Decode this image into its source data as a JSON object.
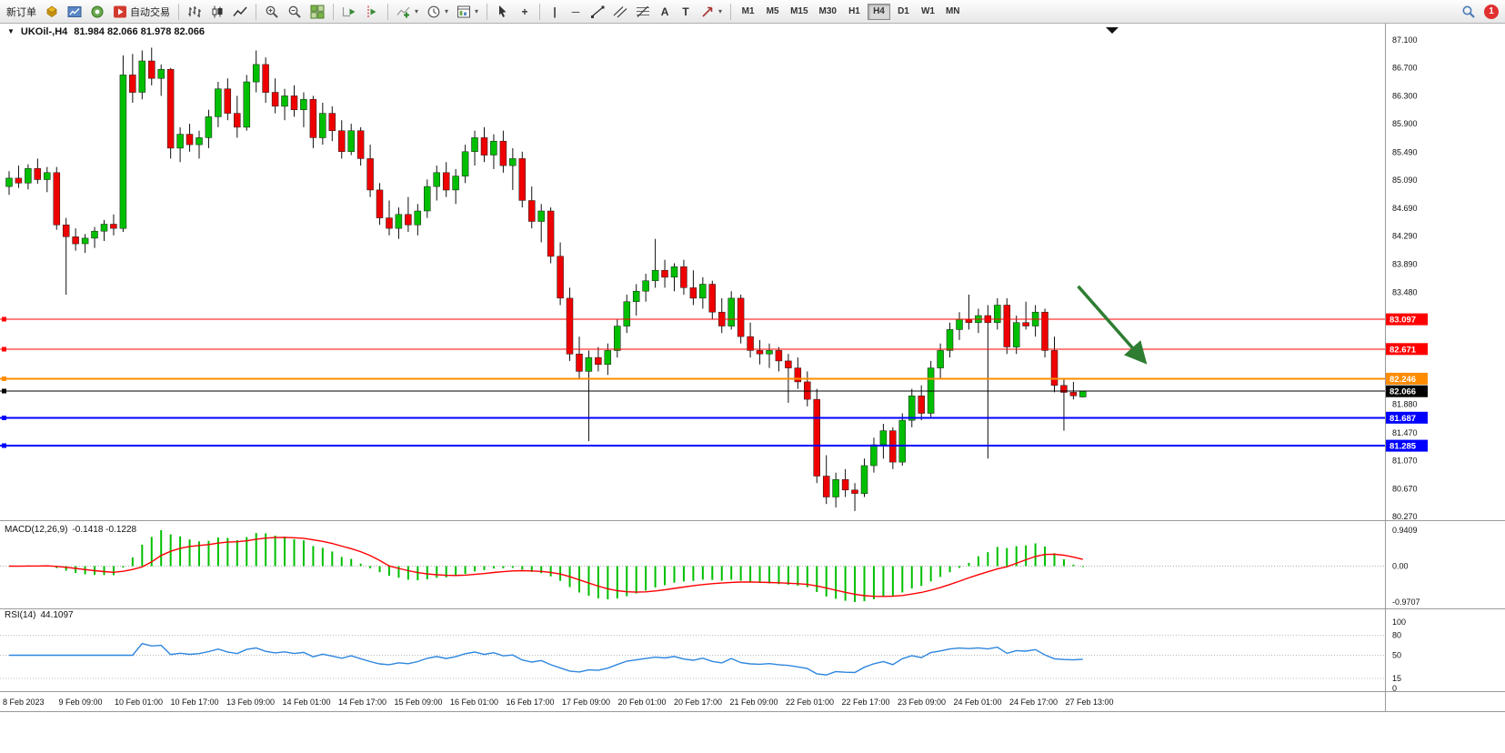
{
  "toolbar": {
    "new_order_label": "新订单",
    "autotrade_label": "自动交易",
    "timeframes": [
      "M1",
      "M5",
      "M15",
      "M30",
      "H1",
      "H4",
      "D1",
      "W1",
      "MN"
    ],
    "active_timeframe": "H4",
    "notification_count": "1"
  },
  "icons": {
    "one_click": "▼",
    "crosshair": "+",
    "vline": "|",
    "hline": "─",
    "text": "A",
    "label": "T",
    "caret": "▾"
  },
  "chart_header": {
    "symbol": "UKOil-,H4",
    "ohlc": "81.984 82.066 81.978 82.066"
  },
  "indicators": {
    "macd": {
      "label": "MACD(12,26,9)",
      "values": "-0.1418 -0.1228",
      "axis": [
        "0.9409",
        "0.00",
        "-0.9707"
      ]
    },
    "rsi": {
      "label": "RSI(14)",
      "value": "44.1097",
      "axis": [
        "100",
        "80",
        "50",
        "15",
        "0"
      ],
      "levels": [
        80,
        50,
        15
      ]
    }
  },
  "chart_data": {
    "type": "candlestick",
    "title": "UKOil-,H4",
    "timeframe": "H4",
    "ohlc_current": [
      81.984,
      82.066,
      81.978,
      82.066
    ],
    "price_range": [
      80.27,
      87.1
    ],
    "price_axis_labels": [
      "87.100",
      "86.700",
      "86.300",
      "85.900",
      "85.490",
      "85.090",
      "84.690",
      "84.290",
      "83.890",
      "83.480",
      "81.880",
      "81.470",
      "81.070",
      "80.670",
      "80.270"
    ],
    "time_axis_labels": [
      "8 Feb 2023",
      "9 Feb 09:00",
      "10 Feb 01:00",
      "10 Feb 17:00",
      "13 Feb 09:00",
      "14 Feb 01:00",
      "14 Feb 17:00",
      "15 Feb 09:00",
      "16 Feb 01:00",
      "16 Feb 17:00",
      "17 Feb 09:00",
      "20 Feb 01:00",
      "20 Feb 17:00",
      "21 Feb 09:00",
      "22 Feb 01:00",
      "22 Feb 17:00",
      "23 Feb 09:00",
      "24 Feb 01:00",
      "24 Feb 17:00",
      "27 Feb 13:00"
    ],
    "hlines": [
      {
        "price": 83.097,
        "label": "83.097",
        "color": "#ff0000",
        "width": 1
      },
      {
        "price": 82.671,
        "label": "82.671",
        "color": "#ff0000",
        "width": 1
      },
      {
        "price": 82.246,
        "label": "82.246",
        "color": "#ff8c00",
        "width": 2
      },
      {
        "price": 82.066,
        "label": "82.066",
        "color": "#000000",
        "width": 1
      },
      {
        "price": 81.687,
        "label": "81.687",
        "color": "#0000ff",
        "width": 2
      },
      {
        "price": 81.285,
        "label": "81.285",
        "color": "#0000ff",
        "width": 2
      }
    ],
    "annotation_arrow": {
      "from_index": 112.5,
      "from_price": 83.57,
      "to_index": 119.3,
      "to_price": 82.52,
      "color": "#2e7d32"
    },
    "colors": {
      "up": "#00bf00",
      "down": "#ef0000",
      "wick": "#101010",
      "macd_hist": "#00bf00",
      "macd_signal": "#ff0000",
      "rsi_line": "#2e86de"
    },
    "candles": [
      [
        85.0,
        85.22,
        84.88,
        85.12
      ],
      [
        85.12,
        85.3,
        84.98,
        85.05
      ],
      [
        85.05,
        85.32,
        84.96,
        85.26
      ],
      [
        85.26,
        85.4,
        85.04,
        85.1
      ],
      [
        85.1,
        85.28,
        84.92,
        85.2
      ],
      [
        85.2,
        85.28,
        84.38,
        84.45
      ],
      [
        84.45,
        84.55,
        83.45,
        84.28
      ],
      [
        84.28,
        84.4,
        84.08,
        84.18
      ],
      [
        84.18,
        84.32,
        84.05,
        84.26
      ],
      [
        84.26,
        84.42,
        84.12,
        84.36
      ],
      [
        84.36,
        84.52,
        84.22,
        84.46
      ],
      [
        84.46,
        84.6,
        84.3,
        84.4
      ],
      [
        84.4,
        86.88,
        84.35,
        86.6
      ],
      [
        86.6,
        86.9,
        86.2,
        86.35
      ],
      [
        86.35,
        86.95,
        86.25,
        86.8
      ],
      [
        86.8,
        86.99,
        86.45,
        86.55
      ],
      [
        86.55,
        86.75,
        86.3,
        86.68
      ],
      [
        86.68,
        86.7,
        85.4,
        85.55
      ],
      [
        85.55,
        85.85,
        85.35,
        85.75
      ],
      [
        85.75,
        85.9,
        85.5,
        85.6
      ],
      [
        85.6,
        85.8,
        85.4,
        85.7
      ],
      [
        85.7,
        86.1,
        85.55,
        86.0
      ],
      [
        86.0,
        86.5,
        85.85,
        86.4
      ],
      [
        86.4,
        86.55,
        85.95,
        86.05
      ],
      [
        86.05,
        86.3,
        85.7,
        85.85
      ],
      [
        85.85,
        86.6,
        85.8,
        86.5
      ],
      [
        86.5,
        86.95,
        86.35,
        86.75
      ],
      [
        86.75,
        86.85,
        86.2,
        86.35
      ],
      [
        86.35,
        86.55,
        86.05,
        86.15
      ],
      [
        86.15,
        86.4,
        85.95,
        86.3
      ],
      [
        86.3,
        86.45,
        86.0,
        86.1
      ],
      [
        86.1,
        86.35,
        85.85,
        86.25
      ],
      [
        86.25,
        86.3,
        85.55,
        85.7
      ],
      [
        85.7,
        86.2,
        85.6,
        86.05
      ],
      [
        86.05,
        86.15,
        85.65,
        85.8
      ],
      [
        85.8,
        85.95,
        85.4,
        85.5
      ],
      [
        85.5,
        85.9,
        85.45,
        85.8
      ],
      [
        85.8,
        85.85,
        85.3,
        85.4
      ],
      [
        85.4,
        85.6,
        84.85,
        84.95
      ],
      [
        84.95,
        85.05,
        84.45,
        84.55
      ],
      [
        84.55,
        84.8,
        84.3,
        84.4
      ],
      [
        84.4,
        84.7,
        84.25,
        84.6
      ],
      [
        84.6,
        84.85,
        84.35,
        84.45
      ],
      [
        84.45,
        84.75,
        84.3,
        84.65
      ],
      [
        84.65,
        85.1,
        84.55,
        85.0
      ],
      [
        85.0,
        85.3,
        84.8,
        85.2
      ],
      [
        85.2,
        85.35,
        84.85,
        84.95
      ],
      [
        84.95,
        85.25,
        84.75,
        85.15
      ],
      [
        85.15,
        85.6,
        85.05,
        85.5
      ],
      [
        85.5,
        85.8,
        85.3,
        85.7
      ],
      [
        85.7,
        85.85,
        85.35,
        85.45
      ],
      [
        85.45,
        85.75,
        85.25,
        85.65
      ],
      [
        85.65,
        85.8,
        85.2,
        85.3
      ],
      [
        85.3,
        85.55,
        84.95,
        85.4
      ],
      [
        85.4,
        85.5,
        84.7,
        84.8
      ],
      [
        84.8,
        85.0,
        84.4,
        84.5
      ],
      [
        84.5,
        84.75,
        84.2,
        84.65
      ],
      [
        84.65,
        84.7,
        83.9,
        84.0
      ],
      [
        84.0,
        84.2,
        83.3,
        83.4
      ],
      [
        83.4,
        83.55,
        82.5,
        82.6
      ],
      [
        82.6,
        82.85,
        82.25,
        82.35
      ],
      [
        82.35,
        82.65,
        81.35,
        82.55
      ],
      [
        82.55,
        82.7,
        82.35,
        82.45
      ],
      [
        82.45,
        82.75,
        82.3,
        82.65
      ],
      [
        82.65,
        83.1,
        82.55,
        83.0
      ],
      [
        83.0,
        83.45,
        82.9,
        83.35
      ],
      [
        83.35,
        83.6,
        83.15,
        83.5
      ],
      [
        83.5,
        83.75,
        83.35,
        83.65
      ],
      [
        83.65,
        84.25,
        83.55,
        83.8
      ],
      [
        83.8,
        83.95,
        83.55,
        83.7
      ],
      [
        83.7,
        83.9,
        83.5,
        83.85
      ],
      [
        83.85,
        83.95,
        83.45,
        83.55
      ],
      [
        83.55,
        83.8,
        83.3,
        83.4
      ],
      [
        83.4,
        83.7,
        83.25,
        83.6
      ],
      [
        83.6,
        83.65,
        83.1,
        83.2
      ],
      [
        83.2,
        83.4,
        82.9,
        83.0
      ],
      [
        83.0,
        83.5,
        82.95,
        83.4
      ],
      [
        83.4,
        83.45,
        82.75,
        82.85
      ],
      [
        82.85,
        83.05,
        82.55,
        82.65
      ],
      [
        82.65,
        82.8,
        82.45,
        82.6
      ],
      [
        82.6,
        82.75,
        82.4,
        82.65
      ],
      [
        82.65,
        82.7,
        82.35,
        82.5
      ],
      [
        82.5,
        82.6,
        81.9,
        82.4
      ],
      [
        82.4,
        82.55,
        82.1,
        82.2
      ],
      [
        82.2,
        82.35,
        81.85,
        81.95
      ],
      [
        81.95,
        82.1,
        80.75,
        80.85
      ],
      [
        80.85,
        81.15,
        80.45,
        80.55
      ],
      [
        80.55,
        80.9,
        80.4,
        80.8
      ],
      [
        80.8,
        80.95,
        80.55,
        80.65
      ],
      [
        80.65,
        80.75,
        80.35,
        80.6
      ],
      [
        80.6,
        81.1,
        80.55,
        81.0
      ],
      [
        81.0,
        81.4,
        80.9,
        81.3
      ],
      [
        81.3,
        81.6,
        81.1,
        81.5
      ],
      [
        81.5,
        81.55,
        80.95,
        81.05
      ],
      [
        81.05,
        81.75,
        81.0,
        81.65
      ],
      [
        81.65,
        82.1,
        81.55,
        82.0
      ],
      [
        82.0,
        82.15,
        81.65,
        81.75
      ],
      [
        81.75,
        82.5,
        81.7,
        82.4
      ],
      [
        82.4,
        82.75,
        82.25,
        82.65
      ],
      [
        82.65,
        83.05,
        82.55,
        82.95
      ],
      [
        82.95,
        83.2,
        82.8,
        83.1
      ],
      [
        83.1,
        83.45,
        82.95,
        83.05
      ],
      [
        83.05,
        83.25,
        82.9,
        83.15
      ],
      [
        83.15,
        83.3,
        81.1,
        83.05
      ],
      [
        83.05,
        83.4,
        82.95,
        83.3
      ],
      [
        83.3,
        83.4,
        82.6,
        82.7
      ],
      [
        82.7,
        83.15,
        82.6,
        83.05
      ],
      [
        83.05,
        83.35,
        82.95,
        83.0
      ],
      [
        83.0,
        83.3,
        82.85,
        83.2
      ],
      [
        83.2,
        83.25,
        82.55,
        82.65
      ],
      [
        82.65,
        82.85,
        82.05,
        82.15
      ],
      [
        82.15,
        82.25,
        81.5,
        82.05
      ],
      [
        82.05,
        82.2,
        81.95,
        82.0
      ],
      [
        81.984,
        82.066,
        81.978,
        82.066
      ]
    ]
  }
}
